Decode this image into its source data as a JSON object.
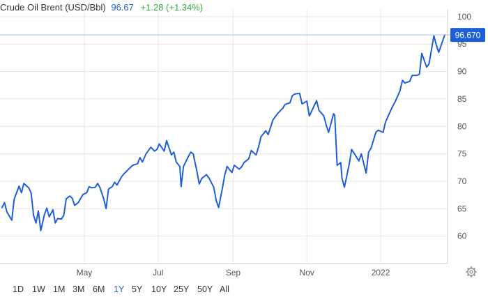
{
  "header": {
    "title": "Crude Oil Brent (USD/Bbl)",
    "price": "96.67",
    "change": "+1.28 (+1.34%)"
  },
  "colors": {
    "line": "#1e5fd6",
    "price_tag_bg": "#1e5fd6",
    "price_tag_text": "#ffffff",
    "grid": "#e6e6e6",
    "axis_text": "#555555",
    "positive_change": "#2eae3f",
    "active_range": "#1e5fd6"
  },
  "ranges": {
    "items": [
      "1D",
      "1W",
      "1M",
      "3M",
      "6M",
      "1Y",
      "5Y",
      "10Y",
      "25Y",
      "50Y",
      "All"
    ],
    "active": "1Y"
  },
  "settings_icon": "gear-icon",
  "chart_data": {
    "type": "line",
    "title": "Crude Oil Brent (USD/Bbl)",
    "xlabel": "",
    "ylabel": "",
    "y_axis_position": "right",
    "ylim": [
      55,
      101
    ],
    "y_ticks": [
      60,
      65,
      70,
      75,
      80,
      85,
      90,
      95,
      100
    ],
    "x_ticks": [
      {
        "label": "May",
        "date": "2021-05-01"
      },
      {
        "label": "Jul",
        "date": "2021-07-01"
      },
      {
        "label": "Sep",
        "date": "2021-09-01"
      },
      {
        "label": "Nov",
        "date": "2021-11-01"
      },
      {
        "label": "2022",
        "date": "2022-01-01"
      }
    ],
    "xlim": [
      "2021-02-22",
      "2022-02-23"
    ],
    "grid": true,
    "last_value_label": "96.670",
    "last_value": 96.67,
    "series": [
      {
        "name": "Crude Oil Brent (USD/Bbl)",
        "points": [
          [
            "2021-02-22",
            65.2
          ],
          [
            "2021-02-24",
            66.1
          ],
          [
            "2021-02-26",
            64.4
          ],
          [
            "2021-03-02",
            62.9
          ],
          [
            "2021-03-04",
            66.7
          ],
          [
            "2021-03-08",
            69.1
          ],
          [
            "2021-03-10",
            67.9
          ],
          [
            "2021-03-12",
            69.6
          ],
          [
            "2021-03-16",
            68.8
          ],
          [
            "2021-03-18",
            67.9
          ],
          [
            "2021-03-20",
            63.8
          ],
          [
            "2021-03-22",
            62.4
          ],
          [
            "2021-03-24",
            64.6
          ],
          [
            "2021-03-26",
            61.0
          ],
          [
            "2021-03-29",
            63.9
          ],
          [
            "2021-03-31",
            65.1
          ],
          [
            "2021-04-02",
            63.5
          ],
          [
            "2021-04-05",
            64.8
          ],
          [
            "2021-04-07",
            62.4
          ],
          [
            "2021-04-09",
            63.2
          ],
          [
            "2021-04-12",
            63.1
          ],
          [
            "2021-04-14",
            63.8
          ],
          [
            "2021-04-16",
            66.8
          ],
          [
            "2021-04-19",
            67.3
          ],
          [
            "2021-04-21",
            66.9
          ],
          [
            "2021-04-23",
            65.6
          ],
          [
            "2021-04-26",
            66.1
          ],
          [
            "2021-04-28",
            66.9
          ],
          [
            "2021-04-30",
            67.6
          ],
          [
            "2021-05-03",
            67.9
          ],
          [
            "2021-05-05",
            69.0
          ],
          [
            "2021-05-07",
            68.8
          ],
          [
            "2021-05-10",
            68.9
          ],
          [
            "2021-05-12",
            69.6
          ],
          [
            "2021-05-14",
            68.8
          ],
          [
            "2021-05-17",
            66.8
          ],
          [
            "2021-05-19",
            65.0
          ],
          [
            "2021-05-21",
            68.6
          ],
          [
            "2021-05-24",
            69.0
          ],
          [
            "2021-05-26",
            69.8
          ],
          [
            "2021-05-28",
            69.3
          ],
          [
            "2021-06-01",
            70.9
          ],
          [
            "2021-06-03",
            71.4
          ],
          [
            "2021-06-07",
            72.3
          ],
          [
            "2021-06-10",
            72.9
          ],
          [
            "2021-06-14",
            73.2
          ],
          [
            "2021-06-16",
            74.3
          ],
          [
            "2021-06-18",
            73.5
          ],
          [
            "2021-06-21",
            75.0
          ],
          [
            "2021-06-23",
            75.6
          ],
          [
            "2021-06-25",
            76.2
          ],
          [
            "2021-06-28",
            75.5
          ],
          [
            "2021-06-30",
            75.8
          ],
          [
            "2021-07-02",
            76.8
          ],
          [
            "2021-07-06",
            75.5
          ],
          [
            "2021-07-08",
            77.4
          ],
          [
            "2021-07-12",
            74.8
          ],
          [
            "2021-07-14",
            75.3
          ],
          [
            "2021-07-16",
            73.5
          ],
          [
            "2021-07-19",
            72.7
          ],
          [
            "2021-07-20",
            69.0
          ],
          [
            "2021-07-22",
            72.7
          ],
          [
            "2021-07-26",
            74.5
          ],
          [
            "2021-07-28",
            75.3
          ],
          [
            "2021-07-30",
            75.0
          ],
          [
            "2021-08-02",
            71.9
          ],
          [
            "2021-08-04",
            69.5
          ],
          [
            "2021-08-06",
            70.5
          ],
          [
            "2021-08-10",
            71.2
          ],
          [
            "2021-08-12",
            70.6
          ],
          [
            "2021-08-16",
            68.9
          ],
          [
            "2021-08-18",
            66.5
          ],
          [
            "2021-08-20",
            65.2
          ],
          [
            "2021-08-23",
            68.6
          ],
          [
            "2021-08-25",
            71.0
          ],
          [
            "2021-08-27",
            72.7
          ],
          [
            "2021-08-31",
            71.6
          ],
          [
            "2021-09-02",
            72.9
          ],
          [
            "2021-09-06",
            72.2
          ],
          [
            "2021-09-08",
            72.6
          ],
          [
            "2021-09-10",
            73.4
          ],
          [
            "2021-09-14",
            74.1
          ],
          [
            "2021-09-16",
            75.6
          ],
          [
            "2021-09-20",
            74.8
          ],
          [
            "2021-09-22",
            76.2
          ],
          [
            "2021-09-24",
            78.1
          ],
          [
            "2021-09-28",
            79.2
          ],
          [
            "2021-09-30",
            78.5
          ],
          [
            "2021-10-04",
            81.2
          ],
          [
            "2021-10-06",
            81.8
          ],
          [
            "2021-10-08",
            82.4
          ],
          [
            "2021-10-12",
            83.3
          ],
          [
            "2021-10-14",
            84.0
          ],
          [
            "2021-10-18",
            84.3
          ],
          [
            "2021-10-20",
            85.6
          ],
          [
            "2021-10-22",
            85.9
          ],
          [
            "2021-10-26",
            86.0
          ],
          [
            "2021-10-28",
            84.1
          ],
          [
            "2021-11-01",
            84.6
          ],
          [
            "2021-11-03",
            81.9
          ],
          [
            "2021-11-05",
            82.8
          ],
          [
            "2021-11-09",
            84.7
          ],
          [
            "2021-11-11",
            82.9
          ],
          [
            "2021-11-15",
            81.9
          ],
          [
            "2021-11-17",
            80.2
          ],
          [
            "2021-11-19",
            78.9
          ],
          [
            "2021-11-23",
            82.3
          ],
          [
            "2021-11-24",
            82.1
          ],
          [
            "2021-11-26",
            72.9
          ],
          [
            "2021-11-29",
            73.4
          ],
          [
            "2021-11-30",
            70.6
          ],
          [
            "2021-12-02",
            68.9
          ],
          [
            "2021-12-06",
            73.1
          ],
          [
            "2021-12-08",
            75.8
          ],
          [
            "2021-12-10",
            75.1
          ],
          [
            "2021-12-14",
            73.7
          ],
          [
            "2021-12-16",
            75.0
          ],
          [
            "2021-12-20",
            71.5
          ],
          [
            "2021-12-22",
            75.3
          ],
          [
            "2021-12-24",
            76.0
          ],
          [
            "2021-12-28",
            78.9
          ],
          [
            "2021-12-30",
            79.3
          ],
          [
            "2022-01-03",
            78.9
          ],
          [
            "2022-01-05",
            80.8
          ],
          [
            "2022-01-07",
            81.8
          ],
          [
            "2022-01-11",
            83.7
          ],
          [
            "2022-01-13",
            84.5
          ],
          [
            "2022-01-17",
            86.5
          ],
          [
            "2022-01-19",
            88.4
          ],
          [
            "2022-01-21",
            87.9
          ],
          [
            "2022-01-25",
            88.2
          ],
          [
            "2022-01-27",
            89.3
          ],
          [
            "2022-01-31",
            89.3
          ],
          [
            "2022-02-02",
            89.5
          ],
          [
            "2022-02-04",
            93.3
          ],
          [
            "2022-02-08",
            90.8
          ],
          [
            "2022-02-10",
            91.4
          ],
          [
            "2022-02-14",
            96.5
          ],
          [
            "2022-02-16",
            94.8
          ],
          [
            "2022-02-18",
            93.5
          ],
          [
            "2022-02-21",
            95.4
          ],
          [
            "2022-02-23",
            96.67
          ]
        ]
      }
    ]
  }
}
